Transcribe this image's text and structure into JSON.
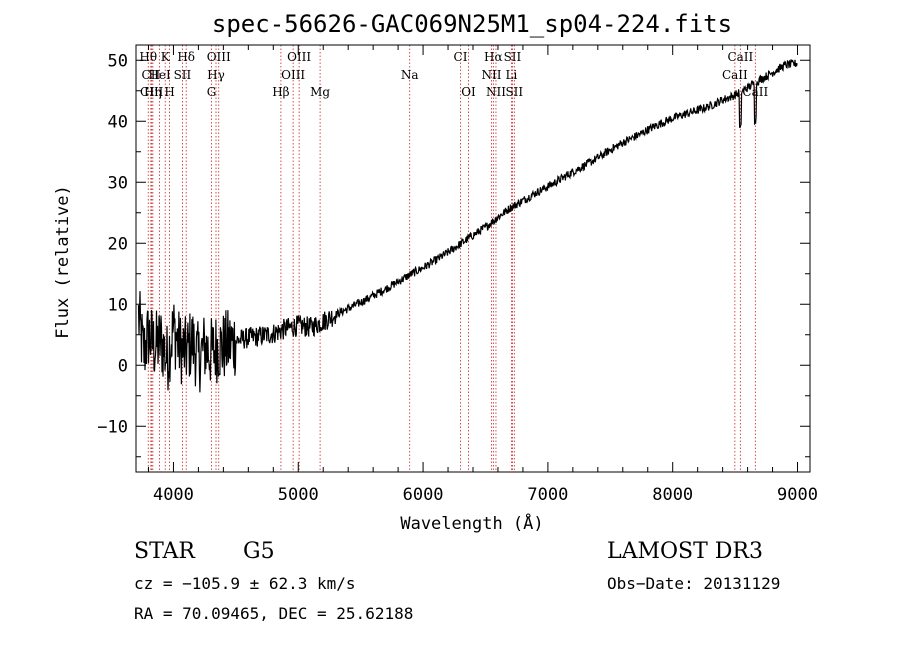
{
  "chart_data": {
    "type": "line",
    "title": "spec-56626-GAC069N25M1_sp04-224.fits",
    "xlabel": "Wavelength (Å)",
    "ylabel": "Flux (relative)",
    "xlim": [
      3700,
      9100
    ],
    "ylim": [
      -17.5,
      52.5
    ],
    "xticks": [
      4000,
      5000,
      6000,
      7000,
      8000,
      9000
    ],
    "yticks": [
      -10,
      0,
      10,
      20,
      30,
      40,
      50
    ],
    "tick_labels_x": [
      "4000",
      "5000",
      "6000",
      "7000",
      "8000",
      "9000"
    ],
    "tick_labels_y": [
      "−10",
      "0",
      "10",
      "20",
      "30",
      "40",
      "50"
    ],
    "series": [
      {
        "name": "spectrum",
        "x": [
          3720,
          3760,
          3800,
          3850,
          3900,
          3950,
          4000,
          4050,
          4100,
          4150,
          4200,
          4250,
          4300,
          4350,
          4400,
          4500,
          4600,
          4700,
          4800,
          4900,
          5000,
          5100,
          5200,
          5300,
          5400,
          5500,
          5600,
          5700,
          5800,
          5900,
          6000,
          6100,
          6200,
          6300,
          6400,
          6500,
          6600,
          6700,
          6800,
          6900,
          7000,
          7100,
          7200,
          7300,
          7400,
          7500,
          7600,
          7700,
          7800,
          7900,
          8000,
          8100,
          8200,
          8300,
          8400,
          8500,
          8600,
          8700,
          8800,
          8900,
          9000
        ],
        "y": [
          8,
          2,
          5,
          3,
          4,
          1,
          6,
          3,
          2,
          4,
          1,
          3,
          2,
          3,
          3,
          4,
          4.5,
          4.8,
          5.2,
          6,
          6.5,
          6.2,
          7.2,
          8.3,
          9.3,
          10.3,
          11.4,
          12.5,
          13.7,
          14.9,
          16,
          17.2,
          18.5,
          19.9,
          21.3,
          22.6,
          24.3,
          25.8,
          27,
          28.2,
          29.3,
          30.5,
          31.7,
          32.8,
          34,
          35.3,
          36.5,
          37.5,
          38.6,
          39.6,
          40.5,
          41.2,
          41.8,
          42.5,
          43.5,
          44.3,
          45.5,
          46.8,
          48,
          49.2,
          49.5
        ]
      }
    ],
    "lines": [
      {
        "label": "Hθ",
        "x": 3798,
        "row": 0
      },
      {
        "label": "CII",
        "x": 3819,
        "row": 1
      },
      {
        "label": "CIII",
        "x": 3826,
        "row": 2
      },
      {
        "label": "K",
        "x": 3934,
        "row": 0
      },
      {
        "label": "HeI",
        "x": 3889,
        "row": 1
      },
      {
        "label": "Hη",
        "x": 3835,
        "row": 2
      },
      {
        "label": "Hδ",
        "x": 4102,
        "row": 0
      },
      {
        "label": "SII",
        "x": 4072,
        "row": 1
      },
      {
        "label": "H",
        "x": 3969,
        "row": 2
      },
      {
        "label": "OIII",
        "x": 4363,
        "row": 0
      },
      {
        "label": "Hγ",
        "x": 4341,
        "row": 1
      },
      {
        "label": "G",
        "x": 4305,
        "row": 2
      },
      {
        "label": "OIII",
        "x": 5007,
        "row": 0
      },
      {
        "label": "OIII",
        "x": 4959,
        "row": 1
      },
      {
        "label": "Hβ",
        "x": 4861,
        "row": 2
      },
      {
        "label": "Mg",
        "x": 5175,
        "row": 2
      },
      {
        "label": "Na",
        "x": 5893,
        "row": 1
      },
      {
        "label": "CI",
        "x": 6300,
        "row": 0
      },
      {
        "label": "OI",
        "x": 6364,
        "row": 2
      },
      {
        "label": "Hα",
        "x": 6563,
        "row": 0
      },
      {
        "label": "NII",
        "x": 6548,
        "row": 1
      },
      {
        "label": "NII",
        "x": 6584,
        "row": 2
      },
      {
        "label": "SII",
        "x": 6716,
        "row": 0
      },
      {
        "label": "Li",
        "x": 6708,
        "row": 1
      },
      {
        "label": "SII",
        "x": 6731,
        "row": 2
      },
      {
        "label": "CaII",
        "x": 8542,
        "row": 0
      },
      {
        "label": "CaII",
        "x": 8498,
        "row": 1
      },
      {
        "label": "CaII",
        "x": 8662,
        "row": 2
      }
    ]
  },
  "footer": {
    "object_type": "STAR",
    "subclass": "G5",
    "survey": "LAMOST DR3",
    "cz": "cz = −105.9 ± 62.3 km/s",
    "obs_date": "Obs−Date: 20131129",
    "radec": "RA =  70.09465, DEC =  25.62188"
  },
  "colors": {
    "axis": "#000000",
    "spectrum": "#000000",
    "line_marker": "#cc2222"
  }
}
